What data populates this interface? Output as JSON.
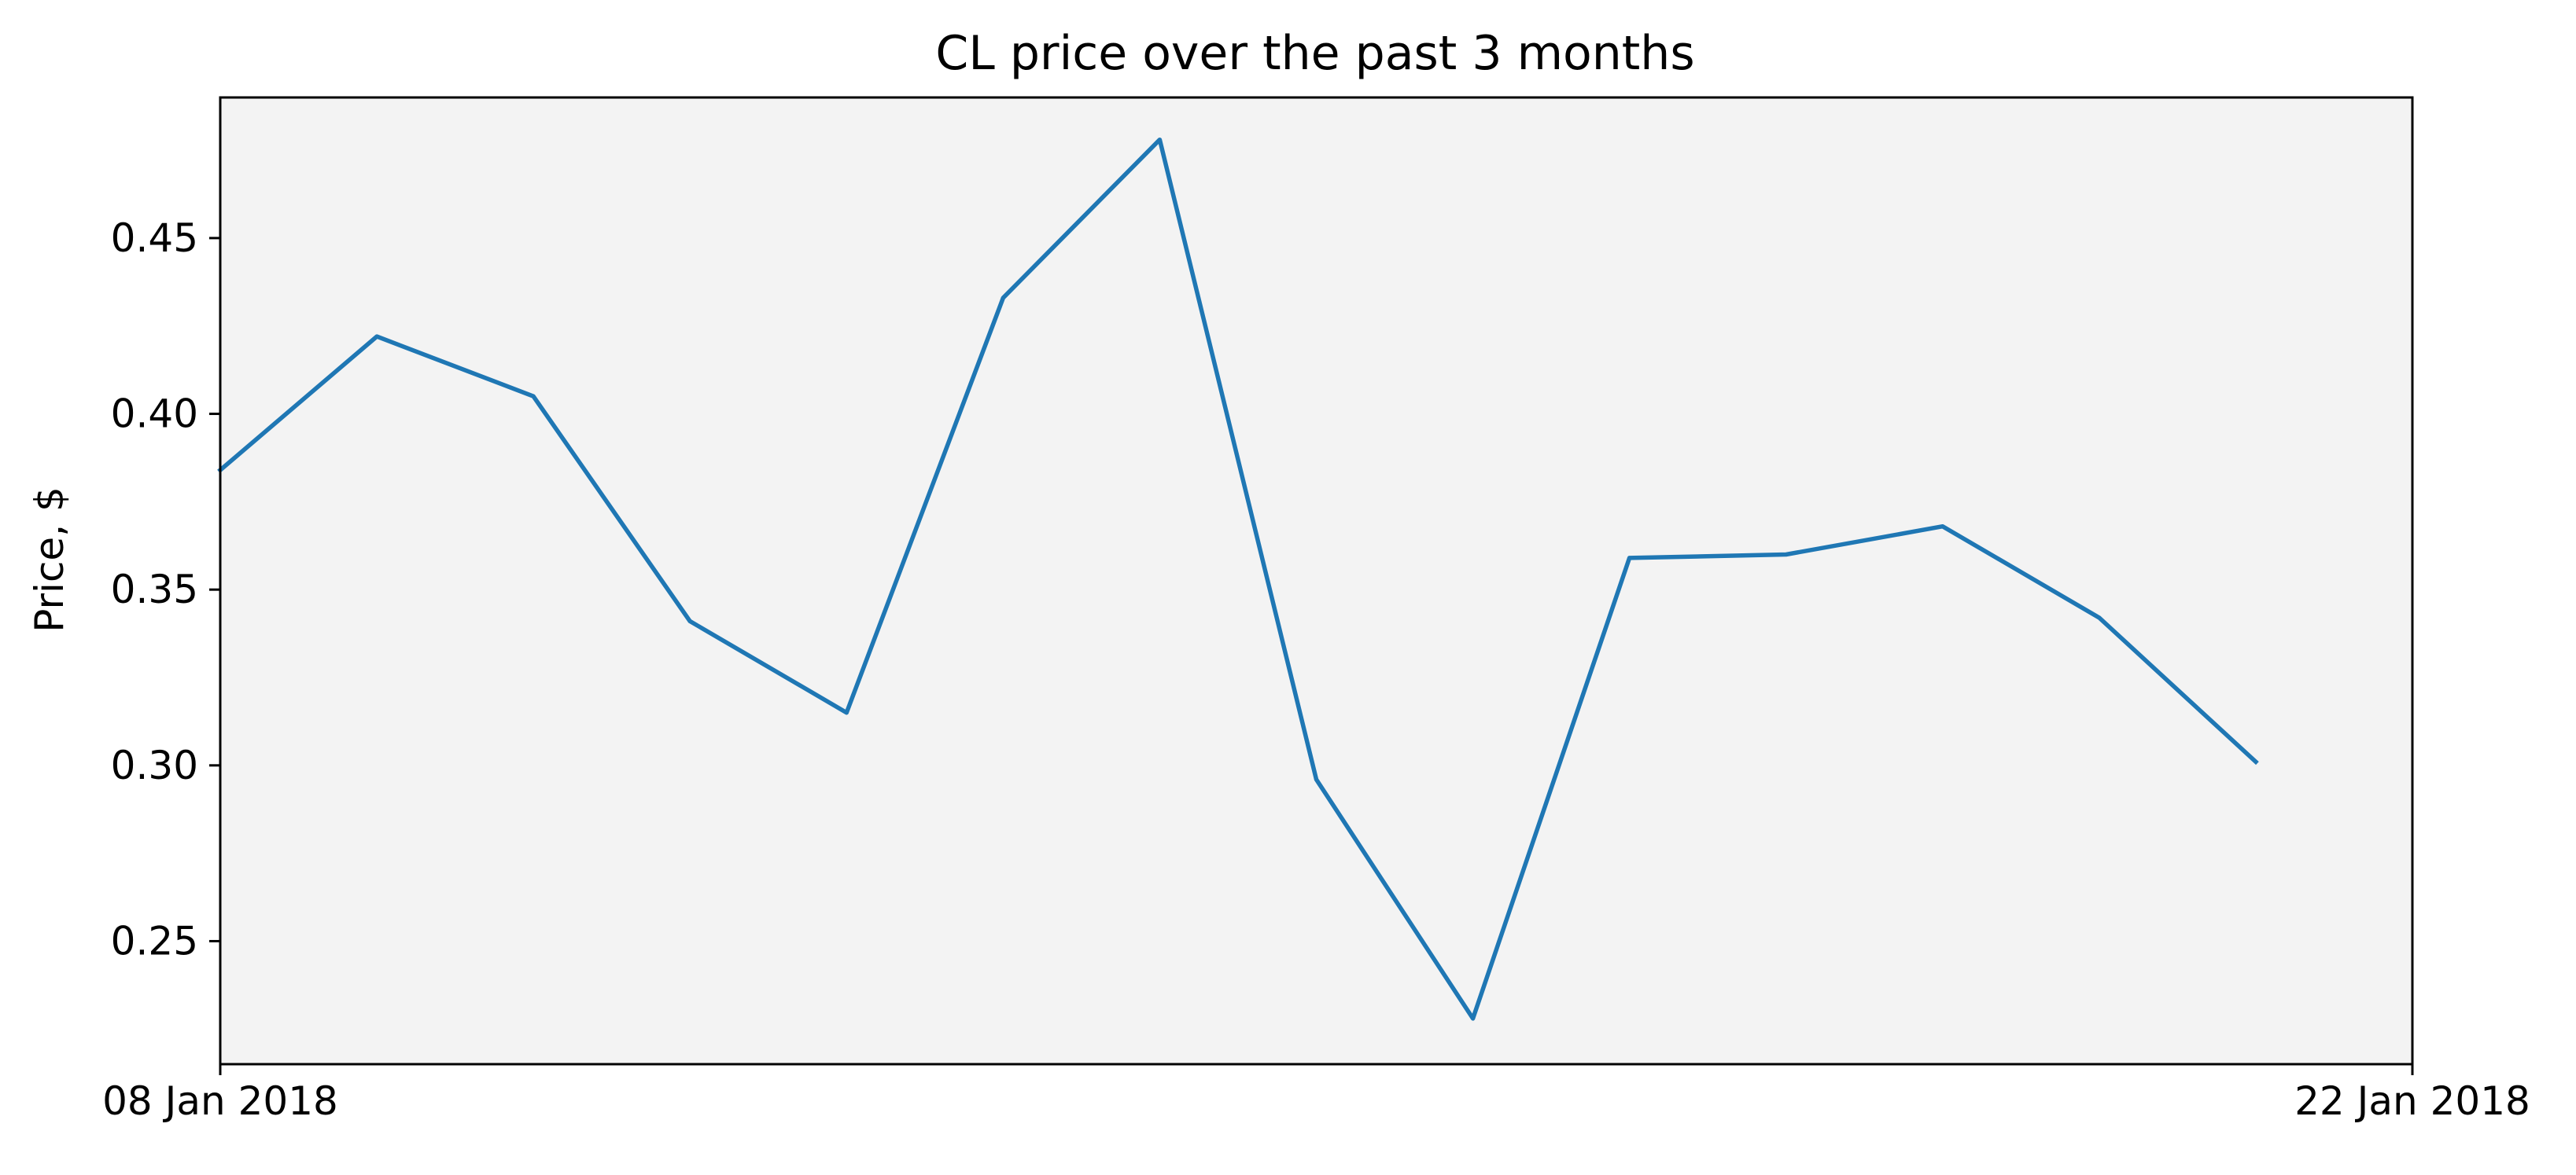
{
  "chart_data": {
    "type": "line",
    "title": "CL price over the past 3 months",
    "xlabel": "",
    "ylabel": "Price, $",
    "x_tick_labels": [
      "08 Jan 2018",
      "22 Jan 2018"
    ],
    "x_range": [
      "2018-01-08",
      "2018-01-22"
    ],
    "ylim": [
      0.215,
      0.49
    ],
    "y_ticks": [
      0.25,
      0.3,
      0.35,
      0.4,
      0.45
    ],
    "y_tick_labels": [
      "0.25",
      "0.30",
      "0.35",
      "0.40",
      "0.45"
    ],
    "grid": false,
    "legend": false,
    "colors": {
      "plot_background": "#f3f3f3",
      "line": "#1f77b4",
      "axes": "#000000"
    },
    "series": [
      {
        "x": [
          "2018-01-08",
          "2018-01-09",
          "2018-01-10",
          "2018-01-11",
          "2018-01-12",
          "2018-01-13",
          "2018-01-14",
          "2018-01-15",
          "2018-01-16",
          "2018-01-17",
          "2018-01-18",
          "2018-01-19",
          "2018-01-20",
          "2018-01-21"
        ],
        "values": [
          0.384,
          0.422,
          0.405,
          0.341,
          0.315,
          0.433,
          0.478,
          0.296,
          0.228,
          0.359,
          0.36,
          0.368,
          0.342,
          0.301
        ]
      }
    ]
  }
}
